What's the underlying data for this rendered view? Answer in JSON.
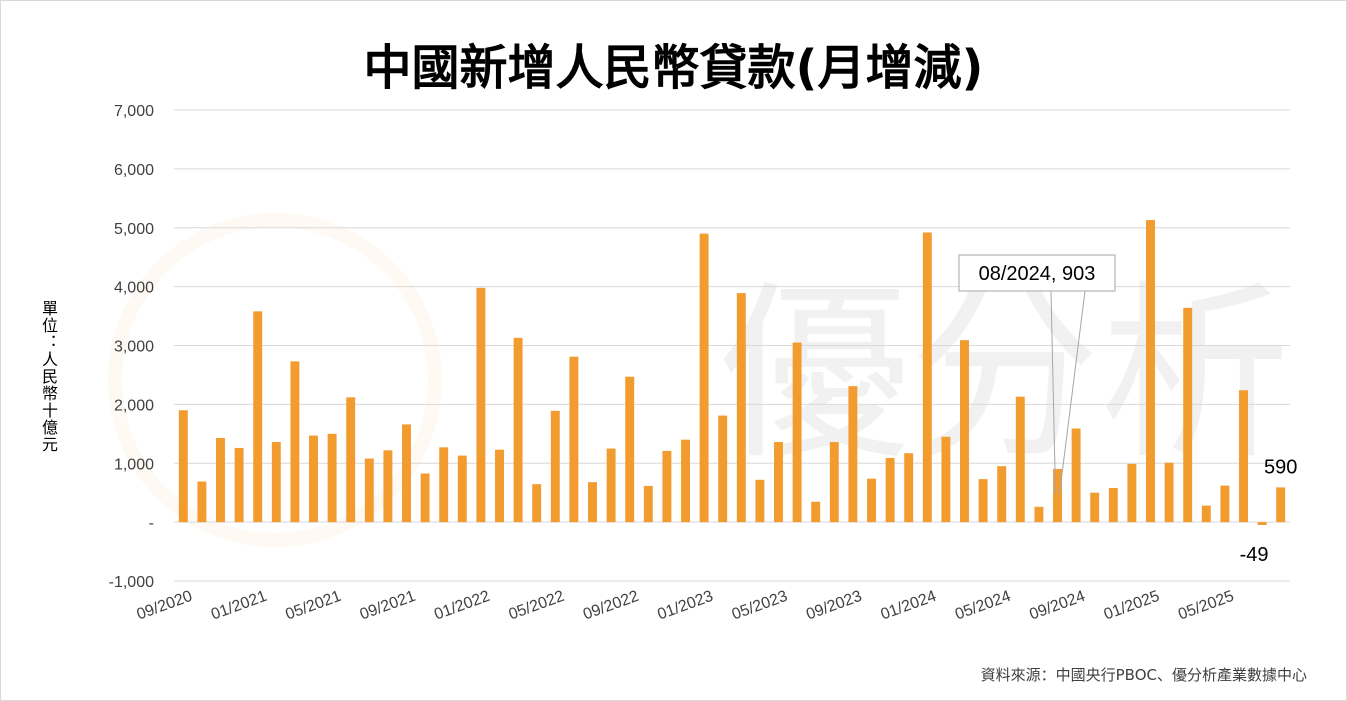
{
  "chart_data": {
    "type": "bar",
    "title": "中國新增人民幣貸款(月增減)",
    "ylabel": "單位：人民幣十億元",
    "source": "資料來源：中國央行PBOC、優分析產業數據中心",
    "ylim": [
      -1000,
      7000
    ],
    "yticks": [
      "-1,000",
      "-",
      "1,000",
      "2,000",
      "3,000",
      "4,000",
      "5,000",
      "6,000",
      "7,000"
    ],
    "ytick_values": [
      -1000,
      0,
      1000,
      2000,
      3000,
      4000,
      5000,
      6000,
      7000
    ],
    "categories": [
      "09/2020",
      "10/2020",
      "11/2020",
      "12/2020",
      "01/2021",
      "02/2021",
      "03/2021",
      "04/2021",
      "05/2021",
      "06/2021",
      "07/2021",
      "08/2021",
      "09/2021",
      "10/2021",
      "11/2021",
      "12/2021",
      "01/2022",
      "02/2022",
      "03/2022",
      "04/2022",
      "05/2022",
      "06/2022",
      "07/2022",
      "08/2022",
      "09/2022",
      "10/2022",
      "11/2022",
      "12/2022",
      "01/2023",
      "02/2023",
      "03/2023",
      "04/2023",
      "05/2023",
      "06/2023",
      "07/2023",
      "08/2023",
      "09/2023",
      "10/2023",
      "11/2023",
      "12/2023",
      "01/2024",
      "02/2024",
      "03/2024",
      "04/2024",
      "05/2024",
      "06/2024",
      "07/2024",
      "08/2024",
      "09/2024",
      "10/2024",
      "11/2024",
      "12/2024",
      "01/2025",
      "02/2025",
      "03/2025",
      "04/2025",
      "05/2025",
      "06/2025",
      "07/2025",
      "08/2025"
    ],
    "xtick_labels": [
      "09/2020",
      "01/2021",
      "05/2021",
      "09/2021",
      "01/2022",
      "05/2022",
      "09/2022",
      "01/2023",
      "05/2023",
      "09/2023",
      "01/2024",
      "05/2024",
      "09/2024",
      "01/2025",
      "05/2025"
    ],
    "series": [
      {
        "values": [
          1900,
          690,
          1430,
          1260,
          3580,
          1360,
          2730,
          1470,
          1500,
          2120,
          1080,
          1220,
          1660,
          826,
          1270,
          1130,
          3980,
          1230,
          3130,
          645,
          1890,
          2810,
          679,
          1250,
          2470,
          615,
          1210,
          1400,
          4900,
          1810,
          3890,
          719,
          1360,
          3050,
          346,
          1360,
          2310,
          738,
          1090,
          1170,
          4920,
          1450,
          3090,
          730,
          950,
          2130,
          260,
          903,
          1590,
          500,
          580,
          990,
          5130,
          1010,
          3640,
          280,
          620,
          2240,
          -49,
          590
        ],
        "color": "#f29b2e"
      }
    ],
    "annotations": [
      {
        "text": "08/2024, 903",
        "category": "08/2024"
      },
      {
        "text": "590",
        "category": "08/2025"
      },
      {
        "text": "-49",
        "category": "07/2025"
      }
    ]
  },
  "watermark": "優分析"
}
